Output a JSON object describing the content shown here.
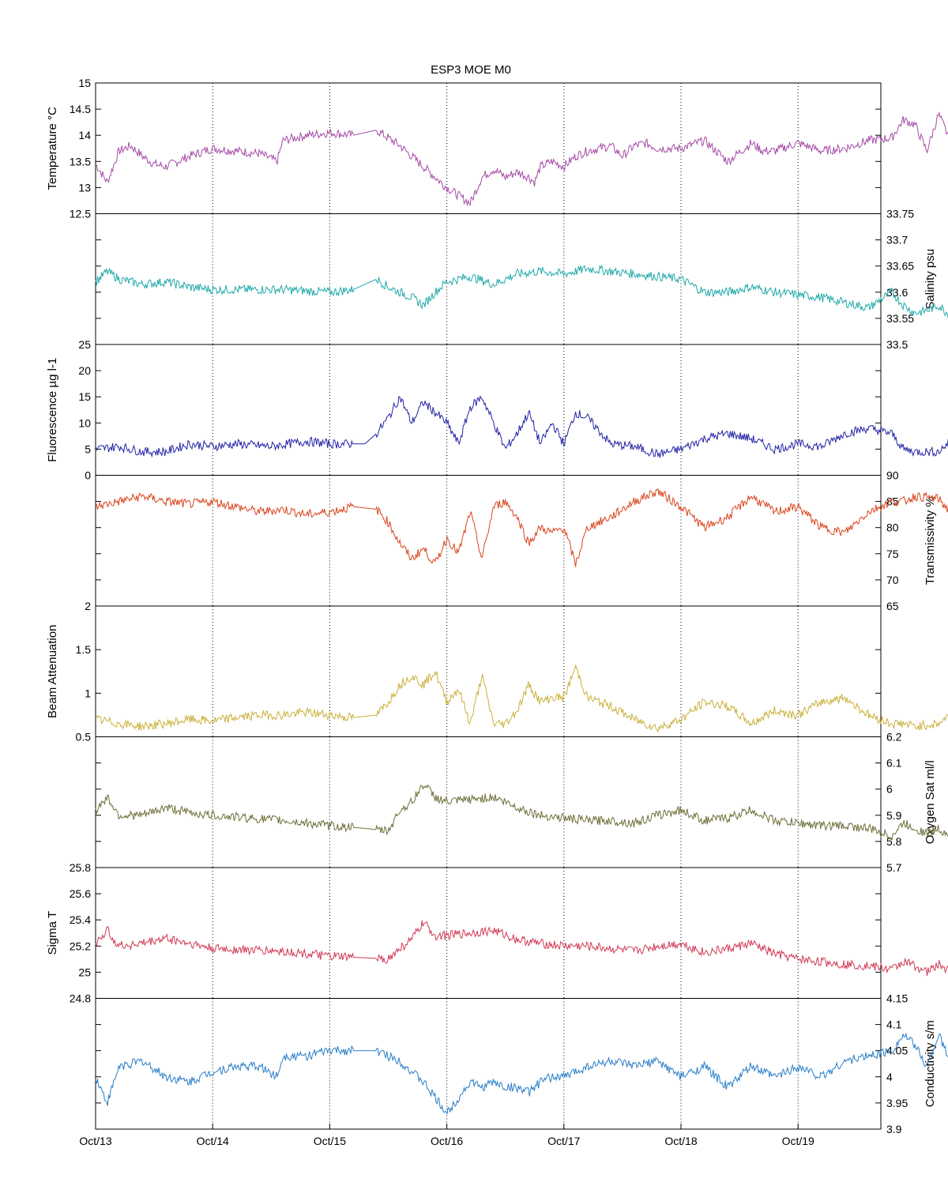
{
  "chart_data": {
    "type": "line",
    "title": "ESP3 MOE   M0",
    "x_axis": {
      "type": "date",
      "range": [
        "Oct/13",
        "Oct/19 18:00"
      ],
      "tick_labels": [
        "Oct/13",
        "Oct/14",
        "Oct/15",
        "Oct/16",
        "Oct/17",
        "Oct/18",
        "Oct/19"
      ],
      "grid": "vertical-dotted"
    },
    "panels": [
      {
        "id": "temperature",
        "ylabel": "Temperature °C",
        "axis_side": "left",
        "ylim": [
          12.5,
          15
        ],
        "tick_labels": [
          "12.5",
          "13",
          "13.5",
          "14",
          "14.5",
          "15"
        ],
        "color": "#a64ca6",
        "x": [
          0,
          0.1,
          0.2,
          0.3,
          0.4,
          0.5,
          0.6,
          0.8,
          1.0,
          1.2,
          1.4,
          1.55,
          1.6,
          1.8,
          2.0,
          2.2,
          2.4,
          2.6,
          2.8,
          3.0,
          3.2,
          3.3,
          3.4,
          3.5,
          3.6,
          3.7,
          3.75,
          3.8,
          3.9,
          4.0,
          4.1,
          4.2,
          4.4,
          4.5,
          4.6,
          4.7,
          4.8,
          5.0,
          5.2,
          5.4,
          5.6,
          5.7,
          5.8,
          6.0,
          6.2,
          6.4,
          6.6,
          6.8,
          6.9,
          7.0,
          7.1,
          7.2,
          7.3,
          7.4,
          7.6,
          7.72
        ],
        "y": [
          13.45,
          13.1,
          13.7,
          13.8,
          13.6,
          13.45,
          13.4,
          13.6,
          13.75,
          13.7,
          13.65,
          13.5,
          13.9,
          14.0,
          14.05,
          14.0,
          14.1,
          13.8,
          13.4,
          13.0,
          12.7,
          13.2,
          13.35,
          13.2,
          13.3,
          13.2,
          13.1,
          13.4,
          13.5,
          13.4,
          13.6,
          13.7,
          13.8,
          13.6,
          13.8,
          13.85,
          13.75,
          13.75,
          13.9,
          13.5,
          13.85,
          13.7,
          13.7,
          13.85,
          13.7,
          13.75,
          13.9,
          13.95,
          14.3,
          14.2,
          13.7,
          14.4,
          13.9,
          13.95,
          14.15,
          13.95
        ]
      },
      {
        "id": "salinity",
        "ylabel": "Salinity psu",
        "axis_side": "right",
        "ylim": [
          33.5,
          33.75
        ],
        "tick_labels": [
          "33.5",
          "33.55",
          "33.6",
          "33.65",
          "33.7",
          "33.75"
        ],
        "color": "#22a9a9",
        "x": [
          0,
          0.1,
          0.2,
          0.4,
          0.6,
          0.8,
          1.0,
          1.3,
          1.6,
          2.0,
          2.2,
          2.4,
          2.5,
          2.6,
          2.7,
          2.8,
          2.9,
          3.0,
          3.2,
          3.4,
          3.6,
          3.8,
          4.0,
          4.2,
          4.4,
          4.6,
          4.8,
          5.0,
          5.2,
          5.4,
          5.6,
          5.8,
          6.0,
          6.2,
          6.4,
          6.6,
          6.8,
          6.9,
          7.0,
          7.1,
          7.2,
          7.3,
          7.4,
          7.6,
          7.72
        ],
        "y": [
          33.62,
          33.64,
          33.625,
          33.615,
          33.62,
          33.61,
          33.605,
          33.605,
          33.605,
          33.6,
          33.605,
          33.625,
          33.61,
          33.6,
          33.59,
          33.575,
          33.6,
          33.62,
          33.63,
          33.615,
          33.635,
          33.64,
          33.635,
          33.645,
          33.64,
          33.635,
          33.63,
          33.625,
          33.6,
          33.6,
          33.61,
          33.6,
          33.595,
          33.59,
          33.58,
          33.57,
          33.6,
          33.575,
          33.56,
          33.565,
          33.575,
          33.555,
          33.575,
          33.565,
          33.55
        ]
      },
      {
        "id": "fluorescence",
        "ylabel": "Fluorescence µg l-1",
        "axis_side": "left",
        "ylim": [
          0,
          25
        ],
        "tick_labels": [
          "0",
          "5",
          "10",
          "15",
          "20",
          "25"
        ],
        "color": "#2323a6",
        "x": [
          0,
          0.2,
          0.4,
          0.6,
          0.8,
          1.0,
          1.2,
          1.5,
          1.8,
          2.0,
          2.3,
          2.4,
          2.5,
          2.6,
          2.7,
          2.8,
          2.9,
          3.0,
          3.1,
          3.2,
          3.3,
          3.4,
          3.5,
          3.6,
          3.7,
          3.8,
          3.9,
          4.0,
          4.1,
          4.2,
          4.4,
          4.6,
          4.8,
          5.0,
          5.2,
          5.4,
          5.6,
          5.8,
          6.0,
          6.2,
          6.4,
          6.6,
          6.8,
          6.9,
          7.0,
          7.2,
          7.3,
          7.4,
          7.6,
          7.72
        ],
        "y": [
          5,
          5.5,
          4.5,
          4.5,
          6,
          5.5,
          6,
          5.5,
          6.5,
          6,
          6,
          8,
          11,
          15,
          10,
          14,
          12,
          10,
          6,
          13,
          15,
          10,
          5,
          8,
          12,
          6,
          10,
          6,
          12,
          11,
          6,
          5.5,
          4,
          5,
          7,
          8,
          7,
          5,
          6,
          5.5,
          8,
          9,
          8,
          5,
          4.5,
          4.5,
          6.5,
          7,
          5,
          4.5
        ]
      },
      {
        "id": "transmissivity",
        "ylabel": "Transmissivity %",
        "axis_side": "right",
        "ylim": [
          65,
          90
        ],
        "tick_labels": [
          "65",
          "70",
          "75",
          "80",
          "85",
          "90"
        ],
        "color": "#d9441c",
        "x": [
          0,
          0.2,
          0.4,
          0.6,
          0.8,
          1.0,
          1.2,
          1.4,
          1.6,
          1.8,
          2.0,
          2.2,
          2.4,
          2.5,
          2.6,
          2.7,
          2.8,
          2.9,
          3.0,
          3.1,
          3.2,
          3.3,
          3.4,
          3.5,
          3.6,
          3.7,
          3.8,
          3.9,
          4.0,
          4.1,
          4.2,
          4.4,
          4.6,
          4.8,
          5.0,
          5.2,
          5.4,
          5.6,
          5.8,
          6.0,
          6.2,
          6.4,
          6.6,
          6.8,
          6.9,
          7.0,
          7.2,
          7.3,
          7.4,
          7.6,
          7.72
        ],
        "y": [
          84,
          85,
          86,
          85,
          84.5,
          85,
          84,
          83,
          83.5,
          82.5,
          83,
          84,
          83.5,
          81,
          77,
          74,
          76,
          73,
          78,
          75,
          83,
          74,
          84,
          85,
          82,
          77,
          80,
          79,
          80,
          73,
          80,
          82,
          85,
          87,
          84,
          80,
          82,
          86,
          83,
          84,
          80,
          79,
          83,
          85,
          85,
          86,
          85.5,
          83,
          83,
          83.5,
          83
        ]
      },
      {
        "id": "beam_attenuation",
        "ylabel": "Beam Attenuation",
        "axis_side": "left",
        "ylim": [
          0.5,
          2
        ],
        "tick_labels": [
          "0.5",
          "1",
          "1.5",
          "2"
        ],
        "color": "#c9b03a",
        "x": [
          0,
          0.2,
          0.4,
          0.6,
          0.8,
          1.0,
          1.2,
          1.4,
          1.6,
          1.8,
          2.0,
          2.2,
          2.4,
          2.5,
          2.6,
          2.7,
          2.8,
          2.9,
          3.0,
          3.1,
          3.2,
          3.3,
          3.4,
          3.5,
          3.6,
          3.7,
          3.8,
          3.9,
          4.0,
          4.1,
          4.2,
          4.4,
          4.6,
          4.8,
          5.0,
          5.2,
          5.4,
          5.6,
          5.8,
          6.0,
          6.2,
          6.4,
          6.6,
          6.8,
          6.9,
          7.0,
          7.2,
          7.3,
          7.4,
          7.6,
          7.72
        ],
        "y": [
          0.7,
          0.65,
          0.62,
          0.65,
          0.7,
          0.68,
          0.72,
          0.75,
          0.75,
          0.78,
          0.75,
          0.72,
          0.75,
          0.9,
          1.1,
          1.2,
          1.1,
          1.25,
          0.9,
          1.05,
          0.65,
          1.2,
          0.65,
          0.65,
          0.8,
          1.1,
          0.9,
          0.95,
          0.95,
          1.3,
          0.95,
          0.85,
          0.7,
          0.6,
          0.7,
          0.9,
          0.85,
          0.65,
          0.8,
          0.75,
          0.9,
          0.95,
          0.75,
          0.65,
          0.65,
          0.62,
          0.65,
          0.75,
          0.75,
          0.73,
          0.75
        ]
      },
      {
        "id": "oxygen_sat",
        "ylabel": "Oxygen Sat ml/l",
        "axis_side": "right",
        "ylim": [
          5.7,
          6.2
        ],
        "tick_labels": [
          "5.7",
          "5.8",
          "5.9",
          "6",
          "6.1",
          "6.2"
        ],
        "color": "#6e6e3a",
        "x": [
          0,
          0.1,
          0.2,
          0.4,
          0.6,
          0.8,
          1.0,
          1.3,
          1.6,
          2.0,
          2.3,
          2.5,
          2.6,
          2.7,
          2.8,
          2.9,
          3.0,
          3.2,
          3.4,
          3.6,
          3.8,
          4.0,
          4.2,
          4.4,
          4.6,
          4.8,
          5.0,
          5.2,
          5.4,
          5.6,
          5.8,
          6.0,
          6.2,
          6.4,
          6.6,
          6.8,
          6.9,
          7.0,
          7.1,
          7.2,
          7.3,
          7.4,
          7.6,
          7.72
        ],
        "y": [
          5.92,
          5.97,
          5.9,
          5.9,
          5.93,
          5.91,
          5.9,
          5.89,
          5.88,
          5.86,
          5.85,
          5.84,
          5.92,
          5.95,
          6.02,
          5.97,
          5.95,
          5.96,
          5.97,
          5.93,
          5.9,
          5.89,
          5.88,
          5.88,
          5.87,
          5.9,
          5.92,
          5.88,
          5.89,
          5.92,
          5.88,
          5.87,
          5.86,
          5.86,
          5.85,
          5.82,
          5.87,
          5.85,
          5.83,
          5.85,
          5.82,
          5.87,
          5.85,
          5.85
        ]
      },
      {
        "id": "sigma_t",
        "ylabel": "Sigma T",
        "axis_side": "left",
        "ylim": [
          24.8,
          25.8
        ],
        "tick_labels": [
          "24.8",
          "25",
          "25.2",
          "25.4",
          "25.6",
          "25.8"
        ],
        "color": "#d03a55",
        "x": [
          0,
          0.1,
          0.2,
          0.4,
          0.6,
          0.8,
          1.0,
          1.3,
          1.6,
          2.0,
          2.3,
          2.5,
          2.6,
          2.7,
          2.8,
          2.9,
          3.0,
          3.2,
          3.4,
          3.6,
          3.8,
          4.0,
          4.2,
          4.4,
          4.6,
          4.8,
          5.0,
          5.2,
          5.4,
          5.6,
          5.8,
          6.0,
          6.2,
          6.4,
          6.6,
          6.8,
          6.9,
          7.0,
          7.1,
          7.2,
          7.3,
          7.4,
          7.6,
          7.72
        ],
        "y": [
          25.22,
          25.32,
          25.2,
          25.22,
          25.26,
          25.22,
          25.18,
          25.17,
          25.16,
          25.12,
          25.11,
          25.1,
          25.18,
          25.25,
          25.38,
          25.28,
          25.28,
          25.3,
          25.32,
          25.25,
          25.22,
          25.2,
          25.2,
          25.18,
          25.16,
          25.2,
          25.22,
          25.15,
          25.18,
          25.22,
          25.14,
          25.1,
          25.08,
          25.06,
          25.05,
          25.02,
          25.08,
          25.05,
          25.0,
          25.06,
          25.0,
          25.12,
          25.05,
          25.08
        ]
      },
      {
        "id": "conductivity",
        "ylabel": "Conductivity s/m",
        "axis_side": "right",
        "ylim": [
          3.9,
          4.15
        ],
        "tick_labels": [
          "3.9",
          "3.95",
          "4",
          "4.05",
          "4.1",
          "4.15"
        ],
        "color": "#2a7ec8",
        "x": [
          0,
          0.1,
          0.2,
          0.4,
          0.6,
          0.8,
          1.0,
          1.2,
          1.4,
          1.55,
          1.6,
          1.8,
          2.0,
          2.2,
          2.4,
          2.6,
          2.8,
          3.0,
          3.2,
          3.3,
          3.4,
          3.5,
          3.6,
          3.7,
          3.8,
          3.9,
          4.0,
          4.1,
          4.2,
          4.4,
          4.6,
          4.8,
          5.0,
          5.2,
          5.4,
          5.6,
          5.8,
          6.0,
          6.2,
          6.4,
          6.6,
          6.8,
          6.9,
          7.0,
          7.1,
          7.2,
          7.3,
          7.4,
          7.6,
          7.72
        ],
        "y": [
          4.0,
          3.95,
          4.02,
          4.03,
          4.0,
          3.99,
          4.01,
          4.02,
          4.02,
          4.0,
          4.04,
          4.04,
          4.05,
          4.05,
          4.05,
          4.03,
          3.99,
          3.93,
          3.99,
          3.98,
          3.99,
          3.98,
          3.98,
          3.97,
          3.99,
          4.0,
          4.0,
          4.01,
          4.02,
          4.03,
          4.02,
          4.03,
          4.0,
          4.02,
          3.98,
          4.02,
          4.0,
          4.02,
          4.0,
          4.03,
          4.04,
          4.05,
          4.08,
          4.06,
          4.02,
          4.08,
          4.03,
          4.03,
          4.05,
          4.03
        ]
      }
    ]
  }
}
